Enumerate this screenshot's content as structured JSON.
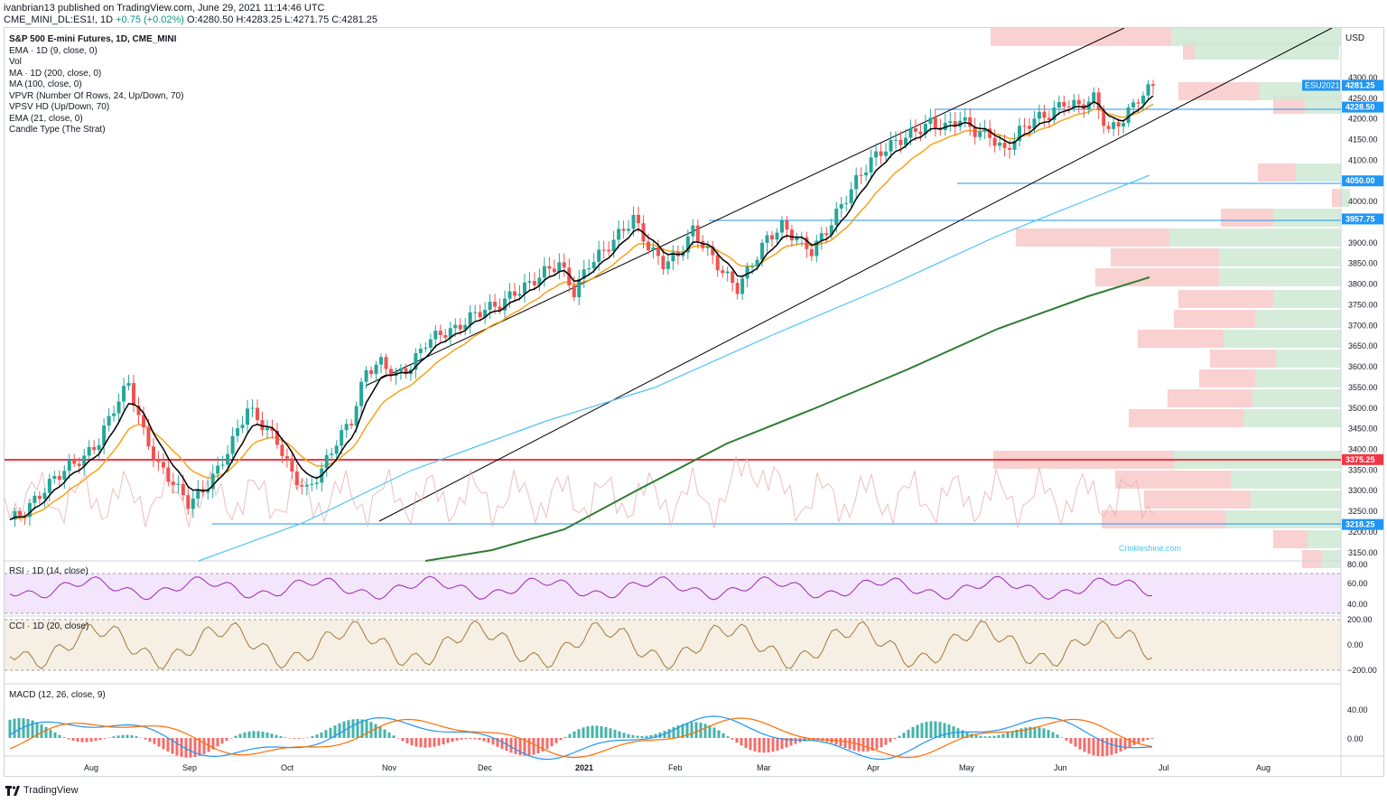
{
  "header": {
    "line1": "ivanbrian13 published on TradingView.com, June 29, 2021 11:14:46 UTC",
    "symbol": "CME_MINI_DL:ES1!, 1D",
    "change": "+0.75 (+0.02%)",
    "ohlc": "O:4280.50 H:4283.25 L:4271.75 C:4281.25"
  },
  "legend": [
    "S&P 500 E-mini Futures, 1D, CME_MINI",
    "EMA · 1D (9, close, 0)",
    "Vol",
    "MA · 1D (200, close, 0)",
    "MA (100, close, 0)",
    "VPVR (Number Of Rows, 24, Up/Down, 70)",
    "VPSV HD (Up/Down, 70)",
    "EMA (21, close, 0)",
    "Candle Type (The Strat)"
  ],
  "panes": {
    "rsi_label": "RSI · 1D (14, close)",
    "cci_label": "CCI · 1D (20, close)",
    "macd_label": "MACD (12, 26, close, 9)"
  },
  "watermark": "Crinkleshine.com",
  "footer": {
    "brand": "TradingView"
  },
  "colors": {
    "up": "#26a69a",
    "down": "#ef5350",
    "ema9": "#000000",
    "ema21": "#f7a21b",
    "ma100": "#4fc3f7",
    "ma200": "#2e7d32",
    "hline": "#2196f3",
    "support": "#f23645"
  },
  "price_axis": {
    "currency": "USD",
    "ticks": [
      "4300.00",
      "4250.00",
      "4200.00",
      "4150.00",
      "4100.00",
      "4000.00",
      "3900.00",
      "3850.00",
      "3800.00",
      "3750.00",
      "3700.00",
      "3650.00",
      "3600.00",
      "3550.00",
      "3500.00",
      "3450.00",
      "3400.00",
      "3350.00",
      "3300.00",
      "3250.00",
      "3200.00",
      "3150.00"
    ],
    "badges": [
      {
        "text": "4281.25",
        "tag": "ESU2021",
        "value": 4281.25
      },
      {
        "text": "4228.50",
        "value": 4228.5
      },
      {
        "text": "4050.00",
        "value": 4050
      },
      {
        "text": "3957.75",
        "value": 3957.75
      },
      {
        "text": "3375.25",
        "value": 3375.25,
        "red": true
      },
      {
        "text": "3218.25",
        "value": 3218.25
      }
    ]
  },
  "rsi_axis": [
    "80.00",
    "60.00",
    "40.00"
  ],
  "cci_axis": [
    "200.00",
    "0.00",
    "−200.00"
  ],
  "macd_axis": [
    "40.00",
    "0.00"
  ],
  "time_axis": [
    "Aug",
    "Sep",
    "Oct",
    "Nov",
    "Dec",
    "2021",
    "Feb",
    "Mar",
    "Apr",
    "May",
    "Jun",
    "Jul",
    "Aug"
  ],
  "chart_data": {
    "type": "candlestick",
    "price_range": [
      3130,
      4420
    ],
    "horizontal_levels": [
      4228.5,
      4050,
      3957.75,
      3375.25,
      3218.25
    ],
    "close_series_sampled": [
      3230,
      3250,
      3290,
      3330,
      3360,
      3380,
      3420,
      3500,
      3560,
      3440,
      3360,
      3320,
      3270,
      3300,
      3350,
      3420,
      3500,
      3460,
      3420,
      3340,
      3300,
      3350,
      3420,
      3470,
      3590,
      3610,
      3580,
      3600,
      3660,
      3680,
      3690,
      3720,
      3740,
      3750,
      3780,
      3800,
      3830,
      3850,
      3780,
      3850,
      3880,
      3920,
      3960,
      3890,
      3850,
      3870,
      3930,
      3880,
      3830,
      3790,
      3850,
      3910,
      3940,
      3910,
      3880,
      3930,
      3990,
      4050,
      4100,
      4130,
      4150,
      4170,
      4190,
      4180,
      4200,
      4170,
      4160,
      4120,
      4170,
      4200,
      4210,
      4240,
      4230,
      4250,
      4170,
      4200,
      4250,
      4280
    ]
  }
}
